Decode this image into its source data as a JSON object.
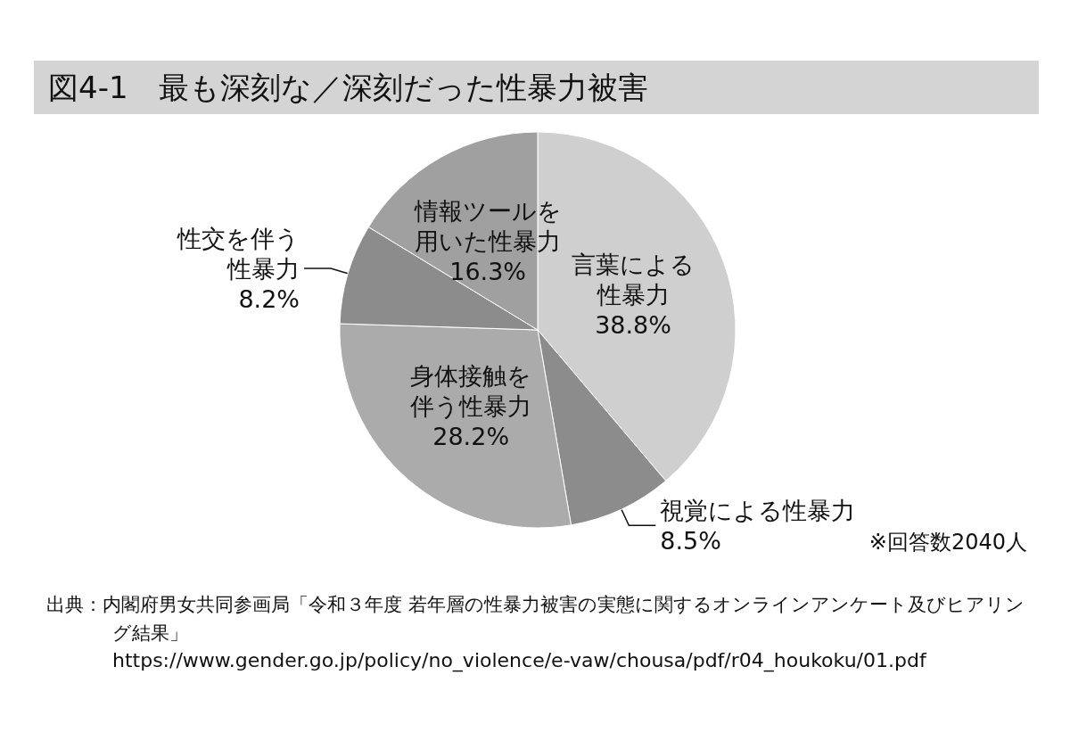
{
  "chart_data": {
    "type": "pie",
    "title": "図4-1　最も深刻な／深刻だった性暴力被害",
    "categories": [
      "言葉による性暴力",
      "視覚による性暴力",
      "身体接触を伴う性暴力",
      "性交を伴う性暴力",
      "情報ツールを用いた性暴力"
    ],
    "values": [
      38.8,
      8.5,
      28.2,
      8.2,
      16.3
    ],
    "value_labels": [
      "38.8%",
      "8.5%",
      "28.2%",
      "8.2%",
      "16.3%"
    ],
    "colors": [
      "#cfcfcf",
      "#8c8c8c",
      "#ababab",
      "#8c8c8c",
      "#a0a0a0"
    ],
    "legend": false,
    "annotations": [
      "※回答数2040人",
      "出典：内閣府男女共同参画局「令和３年度 若年層の性暴力被害の実態に関するオンラインアンケート及びヒアリング結果」",
      "https://www.gender.go.jp/policy/no_violence/e-vaw/chousa/pdf/r04_houkoku/01.pdf"
    ]
  }
}
